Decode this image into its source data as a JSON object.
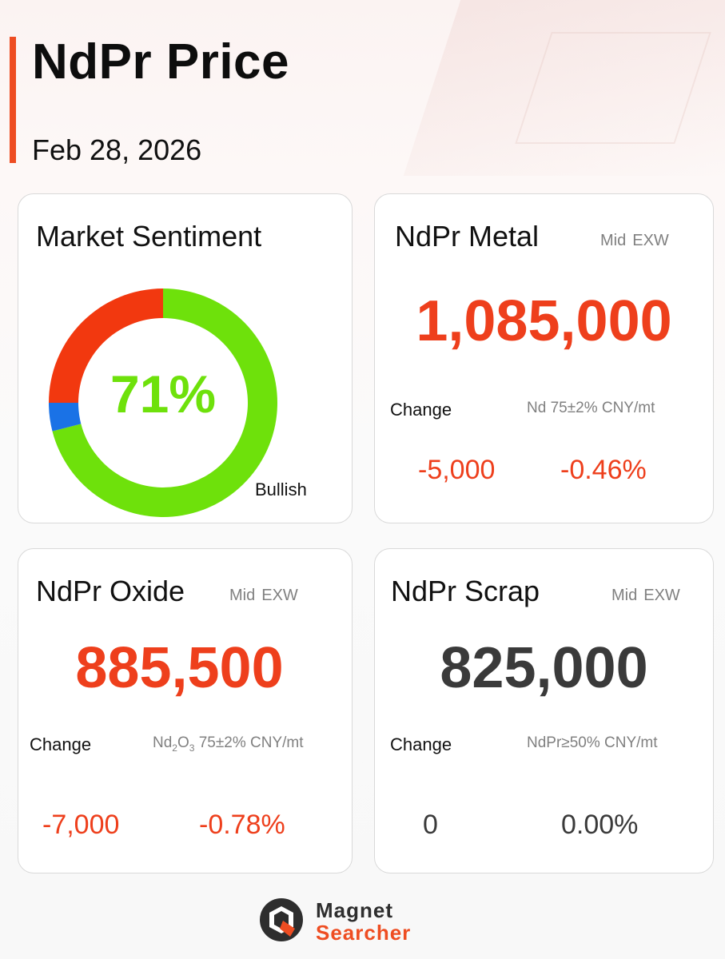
{
  "header": {
    "title": "NdPr Price",
    "date": "Feb 28, 2026"
  },
  "sentiment": {
    "title": "Market Sentiment",
    "percent_label": "71%",
    "bullish_label": "Bullish",
    "segments": [
      {
        "name": "bullish",
        "fraction": 0.71,
        "color": "#6ee10b"
      },
      {
        "name": "neutral",
        "fraction": 0.04,
        "color": "#1a72e6"
      },
      {
        "name": "bearish",
        "fraction": 0.25,
        "color": "#f2380f"
      }
    ]
  },
  "metal": {
    "title": "NdPr Metal",
    "tag_mid": "Mid",
    "tag_exw": "EXW",
    "price": "1,085,000",
    "change_label": "Change",
    "spec": "Nd 75±2% CNY/mt",
    "change_abs": "-5,000",
    "change_pct": "-0.46%"
  },
  "oxide": {
    "title": "NdPr Oxide",
    "tag_mid": "Mid",
    "tag_exw": "EXW",
    "price": "885,500",
    "change_label": "Change",
    "spec_prefix": "Nd",
    "spec_sub1": "2",
    "spec_mid": "O",
    "spec_sub2": "3",
    "spec_suffix": " 75±2% CNY/mt",
    "change_abs": "-7,000",
    "change_pct": "-0.78%"
  },
  "scrap": {
    "title": "NdPr Scrap",
    "tag_mid": "Mid",
    "tag_exw": "EXW",
    "price": "825,000",
    "change_label": "Change",
    "spec": "NdPr≥50% CNY/mt",
    "change_abs": "0",
    "change_pct": "0.00%"
  },
  "logo": {
    "line1": "Magnet",
    "line2": "Searcher",
    "icon": "magnet-searcher-logo-icon"
  },
  "colors": {
    "accent": "#ee4d22",
    "down": "#ee3f1c",
    "neutral_value": "#3a3a3a",
    "bullish": "#6ee10b"
  }
}
